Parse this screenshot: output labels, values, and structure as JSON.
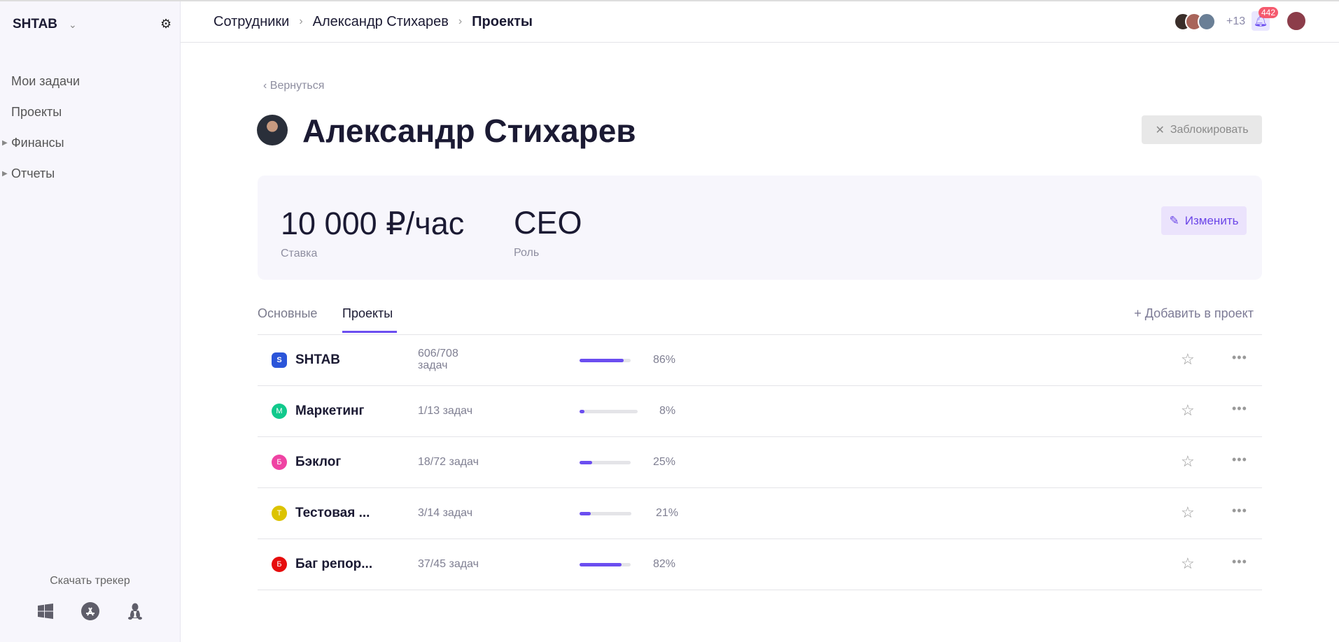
{
  "sidebar": {
    "brand": "SHTAB",
    "items": [
      {
        "label": "Мои задачи"
      },
      {
        "label": "Проекты"
      },
      {
        "label": "Финансы",
        "expandable": true
      },
      {
        "label": "Отчеты",
        "expandable": true
      }
    ],
    "download_label": "Скачать трекер",
    "download_icons": [
      "windows-icon",
      "app-store-icon",
      "linux-icon"
    ]
  },
  "header": {
    "breadcrumb": [
      "Сотрудники",
      "Александр Стихарев",
      "Проекты"
    ],
    "extra_members": "+13",
    "notifications": "442"
  },
  "page": {
    "back": "Вернуться",
    "title": "Александр Стихарев",
    "block_button": "Заблокировать"
  },
  "card": {
    "rate_value": "10 000 ₽/час",
    "rate_label": "Ставка",
    "role_value": "CEO",
    "role_label": "Роль",
    "edit_button": "Изменить"
  },
  "tabs": [
    {
      "label": "Основные"
    },
    {
      "label": "Проекты",
      "active": true
    }
  ],
  "add_to_project": "Добавить в проект",
  "accent_color": "#6b4ef0",
  "projects": [
    {
      "name": "SHTAB",
      "icon": "S",
      "color": "#2b55d9",
      "tasks": "606/708",
      "tasks_suffix": "задач",
      "percent": "86%",
      "progress": 86
    },
    {
      "name": "Маркетинг",
      "icon": "М",
      "color": "#11c98c",
      "tasks": "1/13 задач",
      "percent": "8%",
      "progress": 8
    },
    {
      "name": "Бэклог",
      "icon": "Б",
      "color": "#ef43a3",
      "tasks": "18/72 задач",
      "percent": "25%",
      "progress": 25
    },
    {
      "name": "Тестовая ...",
      "icon": "Т",
      "color": "#dcc300",
      "tasks": "3/14 задач",
      "percent": "21%",
      "progress": 21
    },
    {
      "name": "Баг репор...",
      "icon": "Б",
      "color": "#e60d0d",
      "tasks": "37/45 задач",
      "percent": "82%",
      "progress": 82
    }
  ]
}
